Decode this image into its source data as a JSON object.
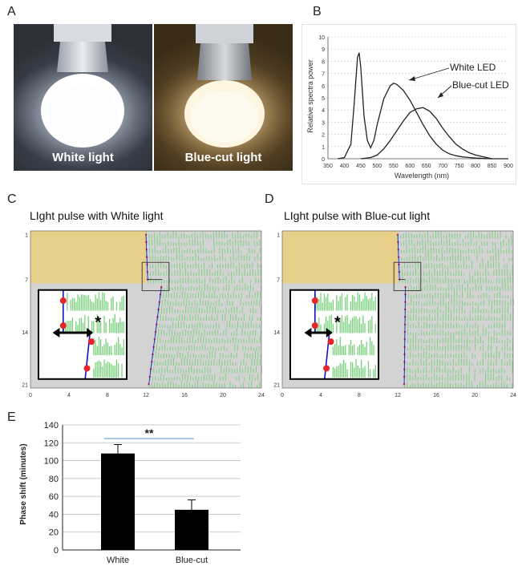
{
  "panels": {
    "A": {
      "letter": "A",
      "photos": [
        {
          "caption": "White light"
        },
        {
          "caption": "Blue-cut light"
        }
      ]
    },
    "B": {
      "letter": "B"
    },
    "C": {
      "letter": "C",
      "title": "LIght pulse with White light"
    },
    "D": {
      "letter": "D",
      "title": "LIght pulse with Blue-cut light"
    },
    "E": {
      "letter": "E"
    }
  },
  "actogram": {
    "y_ticks": [
      "1",
      "7",
      "14",
      "21"
    ],
    "x_ticks": [
      "0",
      "4",
      "8",
      "12",
      "16",
      "20",
      "24"
    ],
    "asterisk": "*",
    "colors": {
      "dark": "#e8d08a",
      "gray": "#d3d3d3",
      "activity": "#77d17a",
      "onset_dot": "#e8242a",
      "fit_line": "#1010c8"
    }
  },
  "chart_data": [
    {
      "type": "line",
      "panel": "B",
      "xlabel": "Wavelength (nm)",
      "ylabel": "Relative spectra power",
      "xlim": [
        350,
        900
      ],
      "ylim": [
        0,
        10
      ],
      "x_ticks": [
        350,
        400,
        450,
        500,
        550,
        600,
        650,
        700,
        750,
        800,
        850,
        900
      ],
      "y_ticks": [
        0,
        1,
        2,
        3,
        4,
        5,
        6,
        7,
        8,
        9,
        10
      ],
      "grid": true,
      "annotations": [
        "White LED",
        "Blue-cut LED"
      ],
      "series": [
        {
          "name": "White LED",
          "x": [
            380,
            400,
            420,
            430,
            440,
            445,
            450,
            460,
            470,
            480,
            490,
            500,
            520,
            540,
            550,
            560,
            580,
            600,
            620,
            640,
            660,
            680,
            700,
            720,
            740,
            760,
            780,
            800,
            850,
            900
          ],
          "y": [
            0,
            0.1,
            1.2,
            4.5,
            8.3,
            8.7,
            7.5,
            3.5,
            1.5,
            0.9,
            1.5,
            2.8,
            4.9,
            6.0,
            6.2,
            6.1,
            5.6,
            4.8,
            3.8,
            2.8,
            1.9,
            1.2,
            0.7,
            0.4,
            0.25,
            0.15,
            0.1,
            0.05,
            0,
            0
          ]
        },
        {
          "name": "Blue-cut LED",
          "x": [
            450,
            480,
            500,
            520,
            540,
            560,
            580,
            600,
            620,
            640,
            660,
            680,
            700,
            720,
            740,
            760,
            780,
            800,
            850
          ],
          "y": [
            0,
            0.1,
            0.3,
            0.8,
            1.5,
            2.3,
            3.1,
            3.8,
            4.1,
            4.2,
            3.9,
            3.3,
            2.5,
            1.8,
            1.2,
            0.8,
            0.5,
            0.3,
            0
          ]
        }
      ]
    },
    {
      "type": "bar",
      "panel": "E",
      "categories": [
        "White",
        "Blue-cut"
      ],
      "values": [
        108,
        45
      ],
      "errors": [
        10,
        11
      ],
      "ylabel": "Phase shift (minutes)",
      "ylim": [
        0,
        140
      ],
      "y_ticks": [
        0,
        20,
        40,
        60,
        80,
        100,
        120,
        140
      ],
      "significance": "**"
    }
  ]
}
